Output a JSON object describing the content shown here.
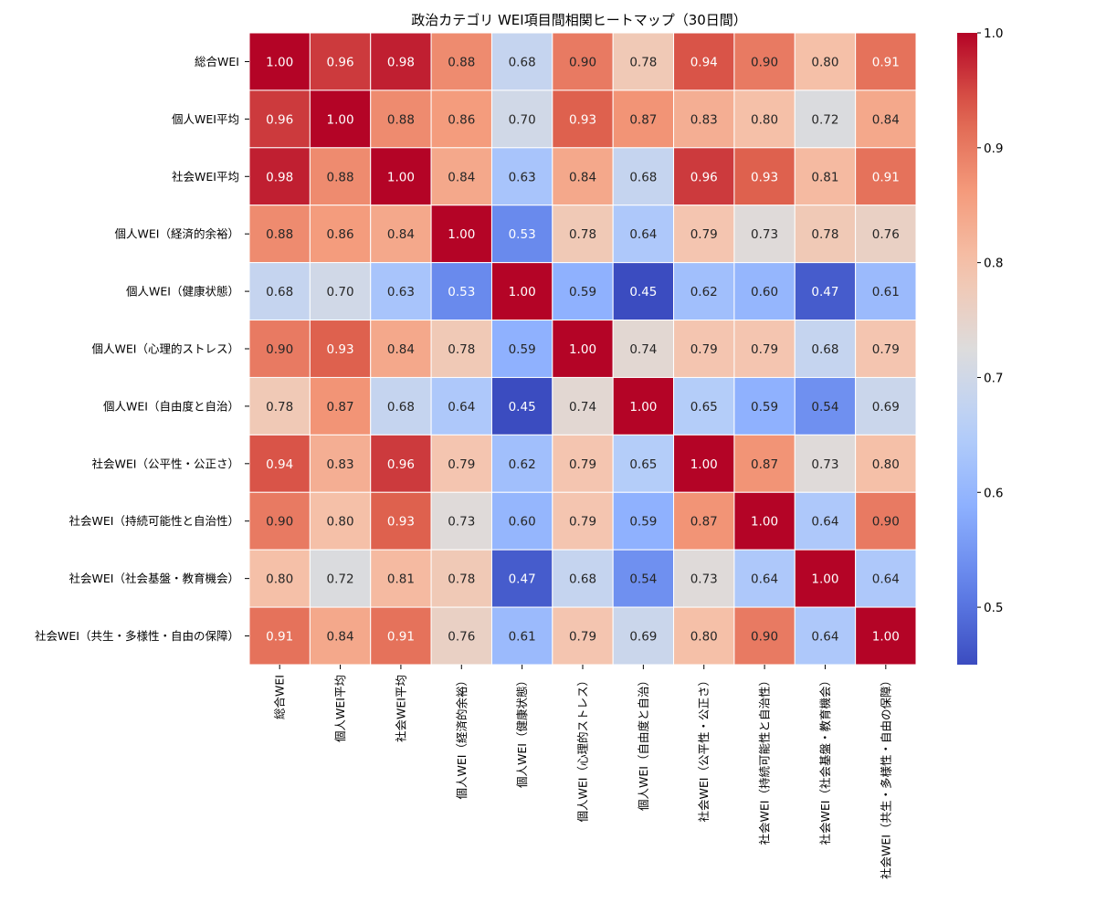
{
  "chart_data": {
    "type": "heatmap",
    "title": "政治カテゴリ WEI項目間相関ヒートマップ（30日間）",
    "row_labels": [
      "総合WEI",
      "個人WEI平均",
      "社会WEI平均",
      "個人WEI（経済的余裕）",
      "個人WEI（健康状態）",
      "個人WEI（心理的ストレス）",
      "個人WEI（自由度と自治）",
      "社会WEI（公平性・公正さ）",
      "社会WEI（持続可能性と自治性）",
      "社会WEI（社会基盤・教育機会）",
      "社会WEI（共生・多様性・自由の保障）"
    ],
    "col_labels": [
      "総合WEI",
      "個人WEI平均",
      "社会WEI平均",
      "個人WEI（経済的余裕）",
      "個人WEI（健康状態）",
      "個人WEI（心理的ストレス）",
      "個人WEI（自由度と自治）",
      "社会WEI（公平性・公正さ）",
      "社会WEI（持続可能性と自治性）",
      "社会WEI（社会基盤・教育機会）",
      "社会WEI（共生・多様性・自由の保障）"
    ],
    "values": [
      [
        1.0,
        0.96,
        0.98,
        0.88,
        0.68,
        0.9,
        0.78,
        0.94,
        0.9,
        0.8,
        0.91
      ],
      [
        0.96,
        1.0,
        0.88,
        0.86,
        0.7,
        0.93,
        0.87,
        0.83,
        0.8,
        0.72,
        0.84
      ],
      [
        0.98,
        0.88,
        1.0,
        0.84,
        0.63,
        0.84,
        0.68,
        0.96,
        0.93,
        0.81,
        0.91
      ],
      [
        0.88,
        0.86,
        0.84,
        1.0,
        0.53,
        0.78,
        0.64,
        0.79,
        0.73,
        0.78,
        0.76
      ],
      [
        0.68,
        0.7,
        0.63,
        0.53,
        1.0,
        0.59,
        0.45,
        0.62,
        0.6,
        0.47,
        0.61
      ],
      [
        0.9,
        0.93,
        0.84,
        0.78,
        0.59,
        1.0,
        0.74,
        0.79,
        0.79,
        0.68,
        0.79
      ],
      [
        0.78,
        0.87,
        0.68,
        0.64,
        0.45,
        0.74,
        1.0,
        0.65,
        0.59,
        0.54,
        0.69
      ],
      [
        0.94,
        0.83,
        0.96,
        0.79,
        0.62,
        0.79,
        0.65,
        1.0,
        0.87,
        0.73,
        0.8
      ],
      [
        0.9,
        0.8,
        0.93,
        0.73,
        0.6,
        0.79,
        0.59,
        0.87,
        1.0,
        0.64,
        0.9
      ],
      [
        0.8,
        0.72,
        0.81,
        0.78,
        0.47,
        0.68,
        0.54,
        0.73,
        0.64,
        1.0,
        0.64
      ],
      [
        0.91,
        0.84,
        0.91,
        0.76,
        0.61,
        0.79,
        0.69,
        0.8,
        0.9,
        0.64,
        1.0
      ]
    ],
    "value_format": "0.00",
    "colormap": "coolwarm",
    "vmin": 0.45,
    "vmax": 1.0,
    "colorbar_ticks": [
      0.5,
      0.6,
      0.7,
      0.8,
      0.9,
      1.0
    ],
    "colorbar_tick_labels": [
      "0.5",
      "0.6",
      "0.7",
      "0.8",
      "0.9",
      "1.0"
    ],
    "grid_line_color": "#ffffff",
    "cmap_colors": {
      "low": "#3b4cc0",
      "mid": "#dddcdc",
      "high": "#b40426"
    }
  }
}
